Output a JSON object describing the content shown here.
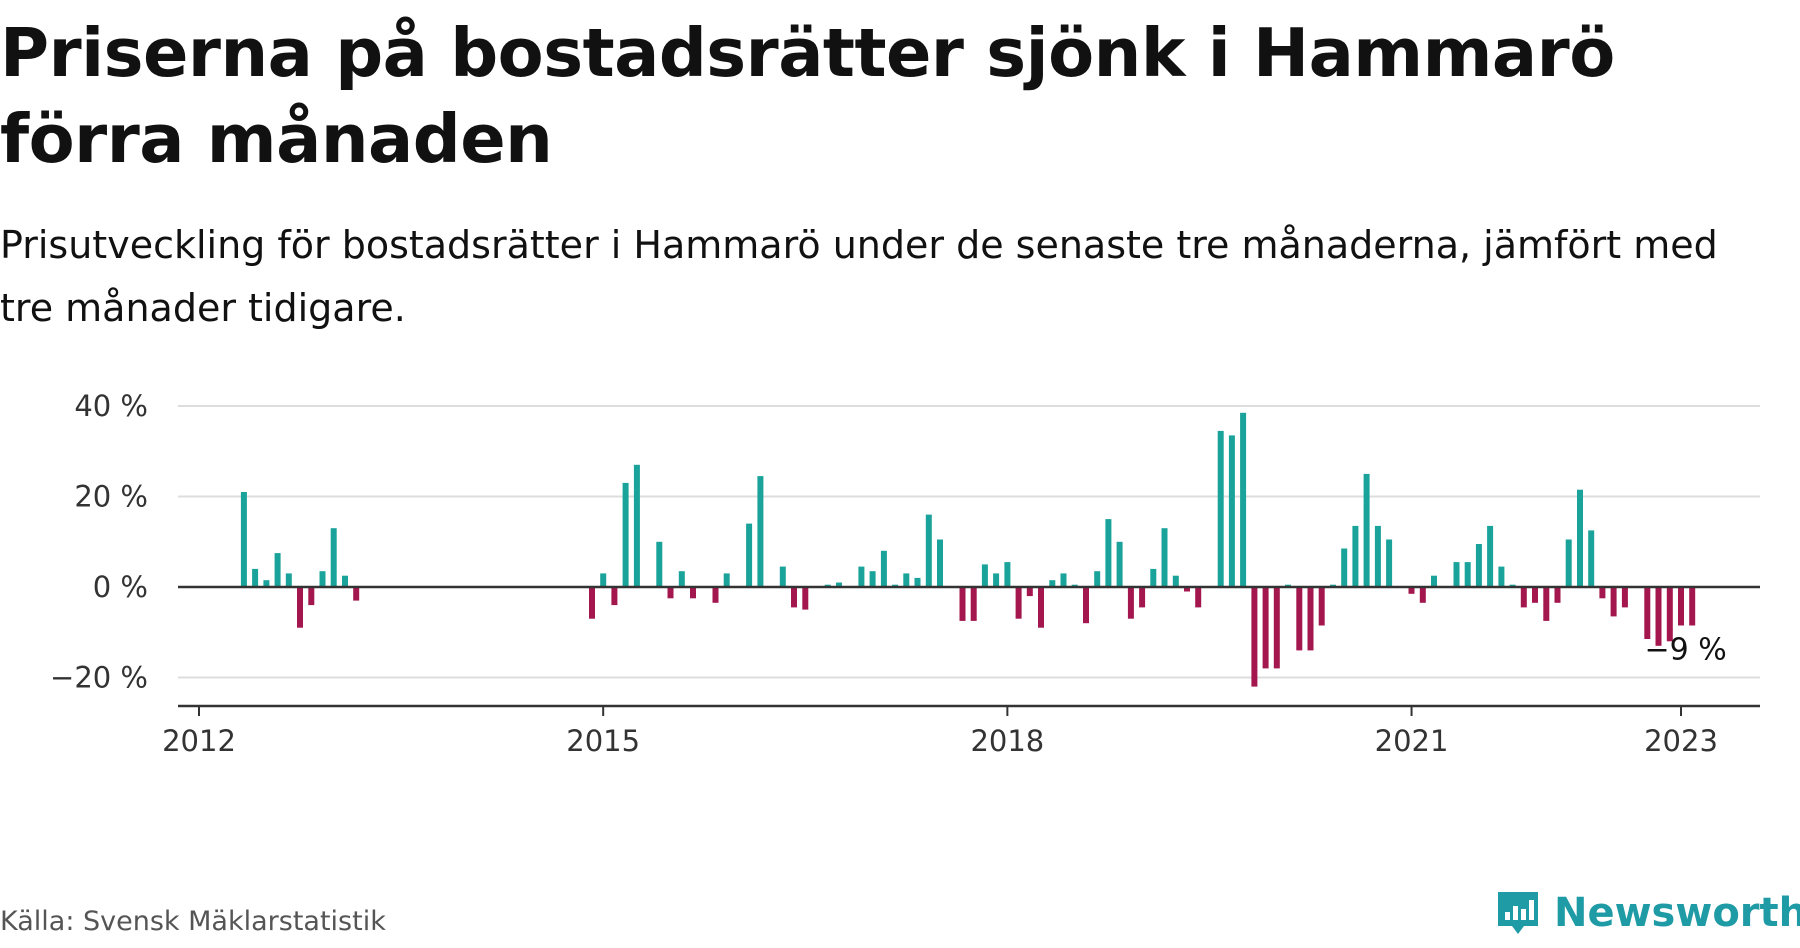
{
  "title": "Priserna på bostadsrätter sjönk i Hammarö förra månaden",
  "subtitle": "Prisutveckling för bostadsrätter i Hammarö under de senaste tre månaderna, jämfört med tre månader tidigare.",
  "source": "Källa: Svensk Mäklarstatistik",
  "brand": "Newsworthy",
  "colors": {
    "positive": "#1aa39b",
    "negative": "#a3174e",
    "brand": "#1f9ba6",
    "grid": "#dddddd",
    "axis": "#333333"
  },
  "chart_data": {
    "type": "bar",
    "x_unit": "month",
    "y_unit": "%",
    "ylim": [
      -26,
      42
    ],
    "y_ticks": [
      40,
      20,
      0,
      -20
    ],
    "y_tick_labels": [
      "40 %",
      "20 %",
      "0 %",
      "−20 %"
    ],
    "x_ticks": [
      "2012-01",
      "2015-01",
      "2018-01",
      "2021-01",
      "2023-01"
    ],
    "x_tick_labels": [
      "2012",
      "2015",
      "2018",
      "2021",
      "2023"
    ],
    "x_range": [
      "2012-01",
      "2023-06"
    ],
    "grid": true,
    "annotation": {
      "x": "2022-11",
      "y": -9,
      "text": "−9 %"
    },
    "series": [
      {
        "values": [
          {
            "x": "2012-05",
            "y": 21
          },
          {
            "x": "2012-06",
            "y": 4
          },
          {
            "x": "2012-07",
            "y": 1.5
          },
          {
            "x": "2012-08",
            "y": 7.5
          },
          {
            "x": "2012-09",
            "y": 3
          },
          {
            "x": "2012-10",
            "y": -9
          },
          {
            "x": "2012-11",
            "y": -4
          },
          {
            "x": "2012-12",
            "y": 3.5
          },
          {
            "x": "2013-01",
            "y": 13
          },
          {
            "x": "2013-02",
            "y": 2.5
          },
          {
            "x": "2013-03",
            "y": -3
          },
          {
            "x": "2014-12",
            "y": -7
          },
          {
            "x": "2015-01",
            "y": 3
          },
          {
            "x": "2015-02",
            "y": -4
          },
          {
            "x": "2015-03",
            "y": 23
          },
          {
            "x": "2015-04",
            "y": 27
          },
          {
            "x": "2015-06",
            "y": 10
          },
          {
            "x": "2015-07",
            "y": -2.5
          },
          {
            "x": "2015-08",
            "y": 3.5
          },
          {
            "x": "2015-09",
            "y": -2.5
          },
          {
            "x": "2015-11",
            "y": -3.5
          },
          {
            "x": "2015-12",
            "y": 3
          },
          {
            "x": "2016-02",
            "y": 14
          },
          {
            "x": "2016-03",
            "y": 24.5
          },
          {
            "x": "2016-05",
            "y": 4.5
          },
          {
            "x": "2016-06",
            "y": -4.5
          },
          {
            "x": "2016-07",
            "y": -5
          },
          {
            "x": "2016-09",
            "y": 0.5
          },
          {
            "x": "2016-10",
            "y": 1
          },
          {
            "x": "2016-12",
            "y": 4.5
          },
          {
            "x": "2017-01",
            "y": 3.5
          },
          {
            "x": "2017-02",
            "y": 8
          },
          {
            "x": "2017-03",
            "y": 0.5
          },
          {
            "x": "2017-04",
            "y": 3
          },
          {
            "x": "2017-05",
            "y": 2
          },
          {
            "x": "2017-06",
            "y": 16
          },
          {
            "x": "2017-07",
            "y": 10.5
          },
          {
            "x": "2017-09",
            "y": -7.5
          },
          {
            "x": "2017-10",
            "y": -7.5
          },
          {
            "x": "2017-11",
            "y": 5
          },
          {
            "x": "2017-12",
            "y": 3
          },
          {
            "x": "2018-01",
            "y": 5.5
          },
          {
            "x": "2018-02",
            "y": -7
          },
          {
            "x": "2018-03",
            "y": -2
          },
          {
            "x": "2018-04",
            "y": -9
          },
          {
            "x": "2018-05",
            "y": 1.5
          },
          {
            "x": "2018-06",
            "y": 3
          },
          {
            "x": "2018-07",
            "y": 0.5
          },
          {
            "x": "2018-08",
            "y": -8
          },
          {
            "x": "2018-09",
            "y": 3.5
          },
          {
            "x": "2018-10",
            "y": 15
          },
          {
            "x": "2018-11",
            "y": 10
          },
          {
            "x": "2018-12",
            "y": -7
          },
          {
            "x": "2019-01",
            "y": -4.5
          },
          {
            "x": "2019-02",
            "y": 4
          },
          {
            "x": "2019-03",
            "y": 13
          },
          {
            "x": "2019-04",
            "y": 2.5
          },
          {
            "x": "2019-05",
            "y": -1
          },
          {
            "x": "2019-06",
            "y": -4.5
          },
          {
            "x": "2019-08",
            "y": 34.5
          },
          {
            "x": "2019-09",
            "y": 33.5
          },
          {
            "x": "2019-10",
            "y": 38.5
          },
          {
            "x": "2019-11",
            "y": -22
          },
          {
            "x": "2019-12",
            "y": -18
          },
          {
            "x": "2020-01",
            "y": -18
          },
          {
            "x": "2020-02",
            "y": 0.5
          },
          {
            "x": "2020-03",
            "y": -14
          },
          {
            "x": "2020-04",
            "y": -14
          },
          {
            "x": "2020-05",
            "y": -8.5
          },
          {
            "x": "2020-06",
            "y": 0.5
          },
          {
            "x": "2020-07",
            "y": 8.5
          },
          {
            "x": "2020-08",
            "y": 13.5
          },
          {
            "x": "2020-09",
            "y": 25
          },
          {
            "x": "2020-10",
            "y": 13.5
          },
          {
            "x": "2020-11",
            "y": 10.5
          },
          {
            "x": "2021-01",
            "y": -1.5
          },
          {
            "x": "2021-02",
            "y": -3.5
          },
          {
            "x": "2021-03",
            "y": 2.5
          },
          {
            "x": "2021-05",
            "y": 5.5
          },
          {
            "x": "2021-06",
            "y": 5.5
          },
          {
            "x": "2021-07",
            "y": 9.5
          },
          {
            "x": "2021-08",
            "y": 13.5
          },
          {
            "x": "2021-09",
            "y": 4.5
          },
          {
            "x": "2021-10",
            "y": 0.5
          },
          {
            "x": "2021-11",
            "y": -4.5
          },
          {
            "x": "2021-12",
            "y": -3.5
          },
          {
            "x": "2022-01",
            "y": -7.5
          },
          {
            "x": "2022-02",
            "y": -3.5
          },
          {
            "x": "2022-03",
            "y": 10.5
          },
          {
            "x": "2022-04",
            "y": 21.5
          },
          {
            "x": "2022-05",
            "y": 12.5
          },
          {
            "x": "2022-06",
            "y": -2.5
          },
          {
            "x": "2022-07",
            "y": -6.5
          },
          {
            "x": "2022-08",
            "y": -4.5
          },
          {
            "x": "2022-10",
            "y": -11.5
          },
          {
            "x": "2022-11",
            "y": -13
          },
          {
            "x": "2022-12",
            "y": -12
          },
          {
            "x": "2023-01",
            "y": -8.5
          },
          {
            "x": "2023-02",
            "y": -8.5
          }
        ]
      }
    ]
  }
}
